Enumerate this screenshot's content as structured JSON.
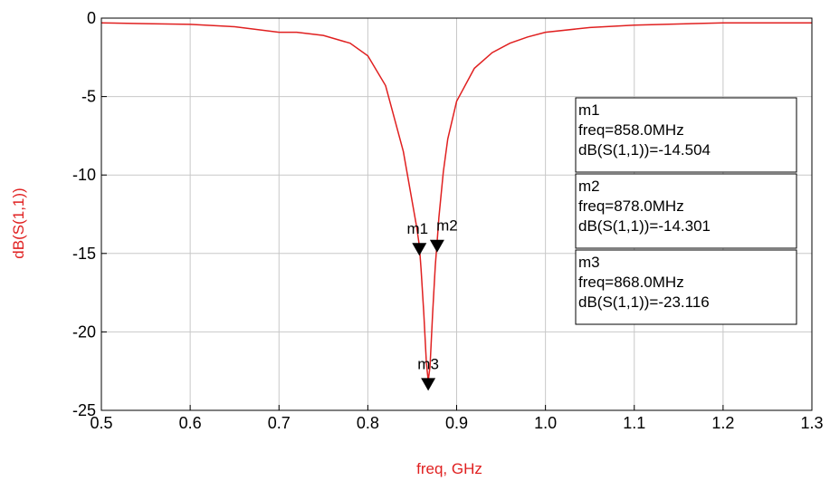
{
  "chart_data": {
    "type": "line",
    "xlabel": "freq, GHz",
    "ylabel": "dB(S(1,1))",
    "xlim": [
      0.5,
      1.3
    ],
    "ylim": [
      -25,
      0
    ],
    "xticks": [
      "0.5",
      "0.6",
      "0.7",
      "0.8",
      "0.9",
      "1.0",
      "1.1",
      "1.2",
      "1.3"
    ],
    "yticks": [
      "0",
      "-5",
      "-10",
      "-15",
      "-20",
      "-25"
    ],
    "grid": true,
    "series": [
      {
        "color": "#e02020",
        "x": [
          0.5,
          0.55,
          0.6,
          0.65,
          0.7,
          0.72,
          0.75,
          0.78,
          0.8,
          0.82,
          0.84,
          0.85,
          0.855,
          0.858,
          0.86,
          0.863,
          0.866,
          0.868,
          0.87,
          0.873,
          0.876,
          0.878,
          0.88,
          0.885,
          0.89,
          0.9,
          0.92,
          0.94,
          0.96,
          0.98,
          1.0,
          1.05,
          1.1,
          1.2,
          1.3
        ],
        "y": [
          -0.3,
          -0.35,
          -0.4,
          -0.55,
          -0.9,
          -0.9,
          -1.1,
          -1.6,
          -2.4,
          -4.3,
          -8.5,
          -11.7,
          -13.3,
          -14.504,
          -16.0,
          -18.8,
          -22.0,
          -23.116,
          -22.2,
          -18.8,
          -15.8,
          -14.301,
          -12.7,
          -9.8,
          -7.7,
          -5.3,
          -3.2,
          -2.2,
          -1.6,
          -1.2,
          -0.9,
          -0.6,
          -0.45,
          -0.3,
          -0.3
        ]
      }
    ],
    "markers": [
      {
        "name": "m1",
        "freq": 0.858,
        "value": -14.504
      },
      {
        "name": "m2",
        "freq": 0.878,
        "value": -14.301
      },
      {
        "name": "m3",
        "freq": 0.868,
        "value": -23.116
      }
    ],
    "marker_boxes": [
      {
        "lines": [
          "m1",
          "freq=858.0MHz",
          "dB(S(1,1))=-14.504"
        ]
      },
      {
        "lines": [
          "m2",
          "freq=878.0MHz",
          "dB(S(1,1))=-14.301"
        ]
      },
      {
        "lines": [
          "m3",
          "freq=868.0MHz",
          "dB(S(1,1))=-23.116"
        ]
      }
    ]
  }
}
